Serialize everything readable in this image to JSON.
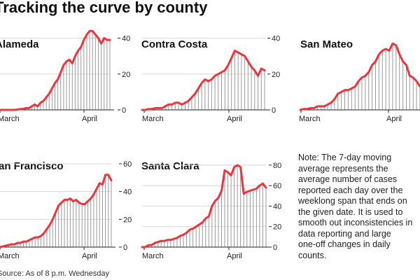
{
  "title": "Tracking the curve by county",
  "note": "Note: The 7-day moving\naverage represents the\naverage number of cases\nreported each day over the\nweeklong span that ends on\nthe given date. It is used to\nsmooth out inconsistencies in\ndata reporting and large\none-off changes in daily\ncounts.",
  "source": "Source: As of 8 p.m. Wednesday",
  "colors": {
    "line": "#e8373f",
    "bars": "#999999",
    "axis": "#222222"
  },
  "chart_data": [
    {
      "type": "area",
      "title": "Alameda",
      "x_tick_labels": [
        "March",
        "April"
      ],
      "y_ticks": [
        0,
        20,
        40
      ],
      "ylim": [
        0,
        48
      ],
      "values": [
        0,
        0,
        0,
        0,
        0,
        0,
        0.2,
        0.5,
        0.5,
        1,
        1,
        2,
        3,
        2,
        4,
        5,
        7,
        9,
        12,
        15,
        17,
        21,
        25,
        27,
        28,
        26,
        30,
        33,
        35,
        39,
        42,
        44,
        44,
        42,
        40,
        37,
        40,
        39,
        39
      ]
    },
    {
      "type": "area",
      "title": "Contra Costa",
      "x_tick_labels": [
        "March",
        "April"
      ],
      "y_ticks": [
        0,
        20,
        40
      ],
      "ylim": [
        0,
        48
      ],
      "values": [
        0,
        0,
        0.5,
        0.5,
        1,
        1,
        1,
        2,
        3,
        3,
        4,
        4,
        3,
        4,
        5,
        7,
        9,
        12,
        15,
        17,
        16,
        17,
        19,
        20,
        21,
        22,
        25,
        29,
        33,
        32,
        31,
        30,
        27,
        24,
        22,
        19,
        23,
        22
      ]
    },
    {
      "type": "area",
      "title": "San Mateo",
      "x_tick_labels": [
        "March",
        "April"
      ],
      "y_ticks": [],
      "ylim": [
        0,
        48
      ],
      "values": [
        0,
        0.5,
        0.5,
        1,
        1,
        2,
        2,
        2,
        3,
        4,
        6,
        9,
        10,
        11,
        11,
        12,
        13,
        16,
        18,
        19,
        21,
        25,
        27,
        31,
        33,
        34,
        33,
        37,
        36,
        31,
        27,
        25,
        19,
        18,
        16,
        13
      ]
    },
    {
      "type": "area",
      "title": "San Francisco",
      "x_tick_labels": [
        "March",
        "April"
      ],
      "y_ticks": [
        0,
        20,
        40,
        60
      ],
      "ylim": [
        0,
        62
      ],
      "values": [
        0,
        0.5,
        1,
        1.5,
        2,
        2,
        3,
        3,
        4,
        4,
        5,
        6,
        7,
        7,
        8,
        10,
        13,
        16,
        20,
        25,
        30,
        32,
        34,
        34,
        35,
        33,
        34,
        32,
        31,
        31,
        33,
        35,
        38,
        42,
        46,
        45,
        52,
        52,
        48
      ]
    },
    {
      "type": "area",
      "title": "Santa Clara",
      "x_tick_labels": [
        "March",
        "April"
      ],
      "y_ticks": [
        0,
        20,
        40,
        60,
        80
      ],
      "ylim": [
        0,
        84
      ],
      "values": [
        0,
        0,
        2,
        2,
        4,
        5,
        6,
        6,
        7,
        7,
        8,
        9,
        11,
        12,
        14,
        17,
        18,
        20,
        22,
        24,
        28,
        30,
        40,
        45,
        48,
        55,
        75,
        73,
        70,
        78,
        80,
        78,
        52,
        54,
        55,
        56,
        57,
        60,
        62,
        58
      ]
    }
  ]
}
